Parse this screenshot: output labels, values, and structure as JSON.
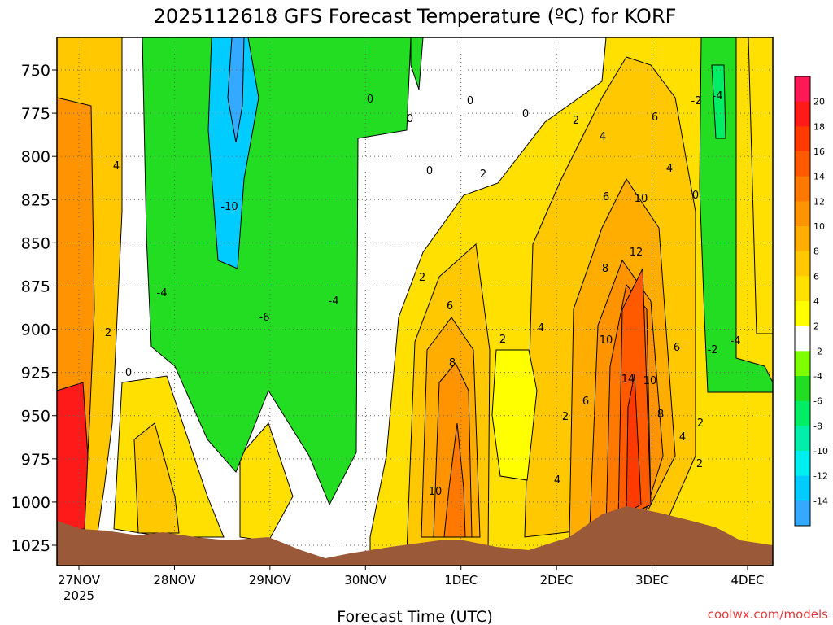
{
  "chart_data": {
    "type": "heatmap",
    "title": "2025112618 GFS Forecast Temperature (ºC) for KORF",
    "xlabel": "Forecast Time (UTC)",
    "ylabel": "",
    "y_ticks": [
      "750",
      "775",
      "800",
      "825",
      "850",
      "875",
      "900",
      "925",
      "950",
      "975",
      "1000",
      "1025"
    ],
    "x_ticks": [
      {
        "label": "27NOV",
        "sub": "2025"
      },
      {
        "label": "28NOV",
        "sub": ""
      },
      {
        "label": "29NOV",
        "sub": ""
      },
      {
        "label": "30NOV",
        "sub": ""
      },
      {
        "label": "1DEC",
        "sub": ""
      },
      {
        "label": "2DEC",
        "sub": ""
      },
      {
        "label": "3DEC",
        "sub": ""
      },
      {
        "label": "4DEC",
        "sub": ""
      }
    ],
    "colorbar_ticks": [
      "20",
      "18",
      "16",
      "14",
      "12",
      "10",
      "8",
      "6",
      "4",
      "2",
      "-2",
      "-4",
      "-6",
      "-8",
      "-10",
      "-12",
      "-14"
    ],
    "colorbar_colors": [
      "#ff1a55",
      "#ff1a1a",
      "#ff3a00",
      "#ff5a00",
      "#ff7800",
      "#ff9400",
      "#ffae00",
      "#ffc800",
      "#ffe000",
      "#ffff00",
      "#ffffff",
      "#80ff00",
      "#22dd22",
      "#00ee66",
      "#00eeaa",
      "#00eeee",
      "#00ccff",
      "#33aaff"
    ],
    "grid": true,
    "contour_labels": [
      "0",
      "0",
      "0",
      "0",
      "0",
      "0",
      "0",
      "2",
      "2",
      "2",
      "2",
      "2",
      "2",
      "2",
      "2",
      "4",
      "4",
      "4",
      "4",
      "4",
      "4",
      "6",
      "6",
      "6",
      "6",
      "6",
      "8",
      "8",
      "8",
      "10",
      "10",
      "10",
      "10",
      "12",
      "14",
      "-2",
      "-2",
      "-4",
      "-4",
      "-4",
      "-4",
      "-6",
      "-10"
    ],
    "credit": "coolwx.com/models"
  }
}
